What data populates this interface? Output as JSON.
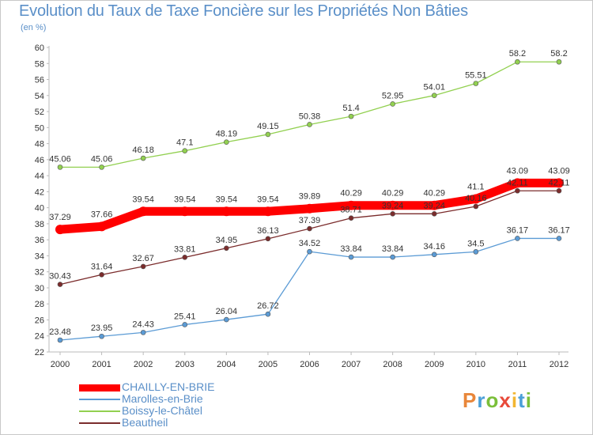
{
  "title": "Evolution du Taux de Taxe Foncière sur les Propriétés Non Bâties",
  "subtitle": "(en %)",
  "brand": {
    "letters": [
      "P",
      "r",
      "o",
      "x",
      "i",
      "t",
      "i"
    ],
    "colors": [
      "#e8863a",
      "#4a9fd8",
      "#7bbf3a",
      "#e84a3a",
      "#f2b632",
      "#4a9fd8",
      "#7bbf3a"
    ]
  },
  "chart_data": {
    "type": "line",
    "title": "Evolution du Taux de Taxe Foncière sur les Propriétés Non Bâties",
    "ylabel": "(en %)",
    "x": [
      "2000",
      "2001",
      "2002",
      "2003",
      "2004",
      "2005",
      "2006",
      "2007",
      "2008",
      "2009",
      "2010",
      "2011",
      "2012"
    ],
    "ylim": [
      22,
      60
    ],
    "yticks": [
      22,
      24,
      26,
      28,
      30,
      32,
      34,
      36,
      38,
      40,
      42,
      44,
      46,
      48,
      50,
      52,
      54,
      56,
      58,
      60
    ],
    "grid": false,
    "legend": "bottom-left",
    "series": [
      {
        "name": "CHAILLY-EN-BRIE",
        "color": "#ff0000",
        "bold": true,
        "values": [
          37.29,
          37.66,
          39.54,
          39.54,
          39.54,
          39.54,
          39.89,
          40.29,
          40.29,
          40.29,
          41.1,
          43.09,
          43.09
        ],
        "labels": [
          "37.29",
          "37.66",
          "39.54",
          "39.54",
          "39.54",
          "39.54",
          "39.89",
          "40.29",
          "40.29",
          "40.29",
          "41.1",
          "43.09",
          "43.09"
        ]
      },
      {
        "name": "Marolles-en-Brie",
        "color": "#5b9bd5",
        "bold": false,
        "values": [
          23.48,
          23.95,
          24.43,
          25.41,
          26.04,
          26.72,
          34.52,
          33.84,
          33.84,
          34.16,
          34.5,
          36.17,
          36.17
        ],
        "labels": [
          "23.48",
          "23.95",
          "24.43",
          "25.41",
          "26.04",
          "26.72",
          "34.52",
          "33.84",
          "33.84",
          "34.16",
          "34.5",
          "36.17",
          "36.17"
        ]
      },
      {
        "name": "Boissy-le-Châtel",
        "color": "#92d050",
        "bold": false,
        "values": [
          45.06,
          45.06,
          46.18,
          47.1,
          48.19,
          49.15,
          50.38,
          51.4,
          52.95,
          54.01,
          55.51,
          58.2,
          58.2
        ],
        "labels": [
          "45.06",
          "45.06",
          "46.18",
          "47.1",
          "48.19",
          "49.15",
          "50.38",
          "51.4",
          "52.95",
          "54.01",
          "55.51",
          "58.2",
          "58.2"
        ]
      },
      {
        "name": "Beautheil",
        "color": "#7b2c2c",
        "bold": false,
        "values": [
          30.43,
          31.64,
          32.67,
          33.81,
          34.95,
          36.13,
          37.39,
          38.71,
          39.24,
          39.24,
          40.16,
          42.11,
          42.11
        ],
        "labels": [
          "30.43",
          "31.64",
          "32.67",
          "33.81",
          "34.95",
          "36.13",
          "37.39",
          "38.71",
          "39.24",
          "39.24",
          "40.16",
          "42.11",
          "42.11"
        ]
      }
    ]
  }
}
